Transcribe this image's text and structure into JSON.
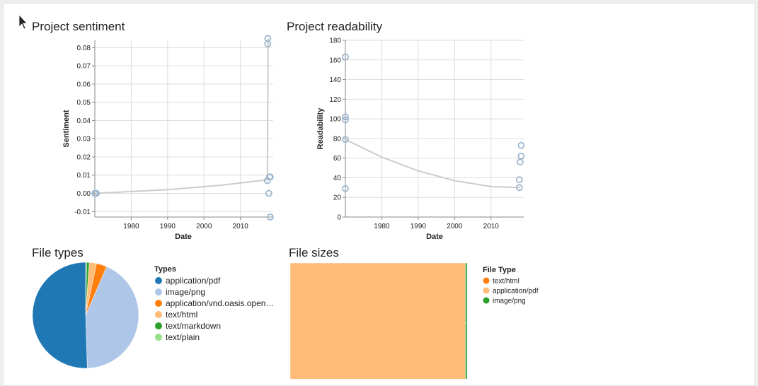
{
  "chart_data": [
    {
      "type": "scatter",
      "title": "Project sentiment",
      "xlabel": "Date",
      "ylabel": "Sentiment",
      "xlim": [
        1970,
        2019
      ],
      "ylim": [
        -0.013,
        0.084
      ],
      "xticks": [
        "1980",
        "1990",
        "2000",
        "2010"
      ],
      "yticks": [
        "-0.01",
        "0.00",
        "0.01",
        "0.02",
        "0.03",
        "0.04",
        "0.05",
        "0.06",
        "0.07",
        "0.08"
      ],
      "grid": true,
      "points": [
        {
          "x": 1970.0,
          "y": 0.0
        },
        {
          "x": 1970.2,
          "y": 0.0
        },
        {
          "x": 1970.4,
          "y": 0.0
        },
        {
          "x": 2017.5,
          "y": 0.085
        },
        {
          "x": 2017.5,
          "y": 0.082
        },
        {
          "x": 2017.4,
          "y": 0.007
        },
        {
          "x": 2018.0,
          "y": 0.009
        },
        {
          "x": 2018.2,
          "y": 0.009
        },
        {
          "x": 2017.8,
          "y": 0.0
        },
        {
          "x": 2018.2,
          "y": -0.013
        }
      ],
      "trend": [
        {
          "x": 1970,
          "y": 0.0
        },
        {
          "x": 1990,
          "y": 0.002
        },
        {
          "x": 2005,
          "y": 0.0045
        },
        {
          "x": 2017.4,
          "y": 0.0075
        },
        {
          "x": 2017.6,
          "y": 0.085
        }
      ],
      "point_color": "#9fb7cf",
      "trend_color": "#cccccc"
    },
    {
      "type": "scatter",
      "title": "Project readability",
      "xlabel": "Date",
      "ylabel": "Readability",
      "xlim": [
        1970,
        2019
      ],
      "ylim": [
        0,
        180
      ],
      "xticks": [
        "1980",
        "1990",
        "2000",
        "2010"
      ],
      "yticks": [
        "0",
        "20",
        "40",
        "60",
        "80",
        "100",
        "120",
        "140",
        "160",
        "180"
      ],
      "grid": true,
      "points": [
        {
          "x": 1970,
          "y": 163
        },
        {
          "x": 1970,
          "y": 102
        },
        {
          "x": 1970,
          "y": 99
        },
        {
          "x": 1970,
          "y": 79
        },
        {
          "x": 1970,
          "y": 29
        },
        {
          "x": 2018.3,
          "y": 73
        },
        {
          "x": 2018.3,
          "y": 62
        },
        {
          "x": 2018.0,
          "y": 56
        },
        {
          "x": 2017.8,
          "y": 38
        },
        {
          "x": 2017.8,
          "y": 30
        }
      ],
      "trend": [
        {
          "x": 1970,
          "y": 79
        },
        {
          "x": 1980,
          "y": 61
        },
        {
          "x": 1990,
          "y": 47
        },
        {
          "x": 2000,
          "y": 37
        },
        {
          "x": 2010,
          "y": 31
        },
        {
          "x": 2018,
          "y": 30
        }
      ],
      "point_color": "#9fb7cf",
      "trend_color": "#cccccc"
    },
    {
      "type": "pie",
      "title": "File types",
      "legend_title": "Types",
      "legend": "right",
      "slices": [
        {
          "label": "application/pdf",
          "value": 50.5,
          "color": "#1f77b4"
        },
        {
          "label": "image/png",
          "value": 43.0,
          "color": "#aec7e8"
        },
        {
          "label": "application/vnd.oasis.open…",
          "value": 3.2,
          "color": "#ff7f0e"
        },
        {
          "label": "text/html",
          "value": 2.2,
          "color": "#ffbb78"
        },
        {
          "label": "text/markdown",
          "value": 0.8,
          "color": "#2ca02c"
        },
        {
          "label": "text/plain",
          "value": 0.3,
          "color": "#98df8a"
        }
      ]
    },
    {
      "type": "treemap",
      "title": "File sizes",
      "legend_title": "File Type",
      "legend": "right",
      "legend_items": [
        {
          "label": "text/html",
          "color": "#ff7f0e"
        },
        {
          "label": "application/pdf",
          "color": "#ffbb78"
        },
        {
          "label": "image/png",
          "color": "#2ca02c"
        }
      ],
      "cells": [
        {
          "type": "application/pdf",
          "share": 0.99,
          "color": "#ffbb78"
        },
        {
          "type": "image/png",
          "share": 0.005,
          "color": "#2ca02c"
        },
        {
          "type": "image/png",
          "share": 0.005,
          "color": "#2ca02c"
        }
      ]
    }
  ]
}
